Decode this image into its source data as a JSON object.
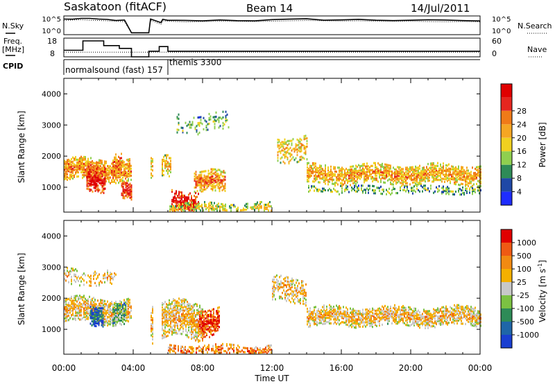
{
  "header": {
    "title": "Saskatoon (fitACF)",
    "beam": "Beam 14",
    "date": "14/Jul/2011"
  },
  "side_labels": {
    "nsky": "N.Sky",
    "nsearch": "N.Search",
    "freq_line1": "Freq.",
    "freq_line2": "[MHz]",
    "nave": "Nave",
    "cpid": "CPID"
  },
  "cpid_names": [
    "normalsound (fast) 157",
    "themis 3300"
  ],
  "x_axis": {
    "label": "Time UT",
    "ticks": [
      "00:00",
      "04:00",
      "08:00",
      "12:00",
      "16:00",
      "20:00",
      "00:00"
    ]
  },
  "colorbars": {
    "power": {
      "label": "Power [dB]",
      "ticks": [
        "4",
        "8",
        "12",
        "16",
        "20",
        "24",
        "28"
      ],
      "colors": [
        "#1e2cff",
        "#1f48a6",
        "#2e8b57",
        "#8fcf4f",
        "#f0d020",
        "#f5a623",
        "#f07a18",
        "#e5261f",
        "#e00000"
      ]
    },
    "velocity": {
      "label": "Velocity [m s",
      "label_sup": "-1",
      "label_end": "]",
      "ticks": [
        "1000",
        "500",
        "100",
        "25",
        "-25",
        "-100",
        "-500",
        "-1000"
      ],
      "colors": [
        "#1a3fd1",
        "#1f66a8",
        "#2e8b57",
        "#7cc242",
        "#c8c8c8",
        "#f5b000",
        "#f28a12",
        "#ef5a14",
        "#e00000"
      ]
    }
  },
  "chart_data": [
    {
      "type": "line",
      "name": "noise-panel",
      "title": "",
      "ylabel": "N.Sky",
      "left_ticks": [
        "10^5",
        "10^0"
      ],
      "right_label": "N.Search",
      "right_ticks": [
        "10^5",
        "10^0"
      ],
      "x_hours": [
        0.0,
        0.5,
        1.0,
        1.5,
        2.0,
        2.5,
        3.0,
        3.5,
        3.9,
        4.0,
        4.3,
        4.4,
        4.9,
        5.0,
        5.6,
        5.7,
        6.0,
        7.0,
        8.0,
        9.0,
        10.0,
        11.0,
        12.0,
        13.0,
        14.0,
        15.0,
        16.0,
        17.0,
        18.0,
        19.0,
        20.0,
        21.0,
        22.0,
        23.0,
        24.0
      ],
      "sky_level": [
        0.82,
        0.84,
        0.86,
        0.83,
        0.82,
        0.8,
        0.78,
        0.75,
        0.1,
        0.1,
        0.1,
        0.1,
        0.1,
        0.82,
        0.62,
        0.8,
        0.78,
        0.74,
        0.76,
        0.78,
        0.77,
        0.76,
        0.78,
        0.8,
        0.82,
        0.8,
        0.79,
        0.8,
        0.78,
        0.77,
        0.78,
        0.76,
        0.75,
        0.76,
        0.74
      ]
    },
    {
      "type": "line",
      "name": "frequency-panel",
      "ylabel": "Freq. [MHz]",
      "left_ticks": [
        "18",
        "8"
      ],
      "right_label": "Nave",
      "right_ticks": [
        "60",
        "0"
      ],
      "freq_steps": [
        [
          0.0,
          1.1,
          11.5
        ],
        [
          1.1,
          2.3,
          16.5
        ],
        [
          2.3,
          3.2,
          14.0
        ],
        [
          3.2,
          3.9,
          12.5
        ],
        [
          3.9,
          4.9,
          8.0
        ],
        [
          4.9,
          5.5,
          11.0
        ],
        [
          5.5,
          6.0,
          13.5
        ],
        [
          6.0,
          24.0,
          11.0
        ]
      ],
      "nave_level": 15
    },
    {
      "type": "table",
      "name": "cpid-panel",
      "segments": [
        {
          "start_hour": 0.0,
          "end_hour": 6.0,
          "label_index": 0
        },
        {
          "start_hour": 6.0,
          "end_hour": 24.0,
          "label_index": 1
        }
      ]
    },
    {
      "type": "heatmap",
      "name": "power-panel",
      "ylabel": "Slant Range [km]",
      "yticks": [
        "1000",
        "2000",
        "3000",
        "4000"
      ],
      "xlim": [
        0,
        24
      ],
      "ylim": [
        200,
        4500
      ],
      "colorbar": "power",
      "gaps_hours": [
        [
          3.9,
          4.9
        ],
        [
          5.1,
          5.6
        ]
      ],
      "bands": [
        {
          "t0": 0.0,
          "t1": 4.0,
          "r_center": 1600,
          "r_width": 350,
          "density": 0.9,
          "level": 0.55
        },
        {
          "t0": 1.3,
          "t1": 2.4,
          "r_center": 1350,
          "r_width": 400,
          "density": 0.85,
          "level": 0.75
        },
        {
          "t0": 2.8,
          "t1": 3.3,
          "r_center": 1750,
          "r_width": 300,
          "density": 0.8,
          "level": 0.6
        },
        {
          "t0": 3.3,
          "t1": 3.9,
          "r_center": 900,
          "r_width": 250,
          "density": 0.8,
          "level": 0.7
        },
        {
          "t0": 5.0,
          "t1": 6.2,
          "r_center": 1650,
          "r_width": 350,
          "density": 0.7,
          "level": 0.45
        },
        {
          "t0": 6.2,
          "t1": 7.8,
          "r_center": 600,
          "r_width": 350,
          "density": 0.85,
          "level": 0.75
        },
        {
          "t0": 7.5,
          "t1": 9.3,
          "r_center": 1200,
          "r_width": 350,
          "density": 0.75,
          "level": 0.55
        },
        {
          "t0": 6.0,
          "t1": 12.0,
          "r_center": 350,
          "r_width": 200,
          "density": 0.55,
          "level": 0.35
        },
        {
          "t0": 12.3,
          "t1": 14.0,
          "r_center": 2300,
          "r_width": 400,
          "density": 0.5,
          "level": 0.45
        },
        {
          "t0": 14.0,
          "t1": 24.0,
          "r_center": 1450,
          "r_width": 300,
          "density": 0.8,
          "level": 0.5
        },
        {
          "t0": 14.0,
          "t1": 24.0,
          "r_center": 950,
          "r_width": 120,
          "density": 0.4,
          "level": 0.25
        },
        {
          "t0": 6.5,
          "t1": 9.5,
          "r_center": 3100,
          "r_width": 300,
          "density": 0.25,
          "level": 0.25
        }
      ]
    },
    {
      "type": "heatmap",
      "name": "velocity-panel",
      "ylabel": "Slant Range [km]",
      "yticks": [
        "1000",
        "2000",
        "3000",
        "4000"
      ],
      "xlim": [
        0,
        24
      ],
      "ylim": [
        200,
        4500
      ],
      "colorbar": "velocity",
      "gaps_hours": [
        [
          3.9,
          4.9
        ],
        [
          5.1,
          5.6
        ]
      ],
      "bands": [
        {
          "t0": 0.0,
          "t1": 4.0,
          "r_center": 1650,
          "r_width": 400,
          "density": 0.85,
          "level": 0.5
        },
        {
          "t0": 1.5,
          "t1": 2.3,
          "r_center": 1500,
          "r_width": 300,
          "density": 0.85,
          "level": 0.08
        },
        {
          "t0": 2.8,
          "t1": 3.6,
          "r_center": 1500,
          "r_width": 300,
          "density": 0.8,
          "level": 0.25
        },
        {
          "t0": 5.0,
          "t1": 8.0,
          "r_center": 1300,
          "r_width": 600,
          "density": 0.8,
          "level": 0.5
        },
        {
          "t0": 7.8,
          "t1": 9.0,
          "r_center": 1300,
          "r_width": 450,
          "density": 0.85,
          "level": 0.75
        },
        {
          "t0": 6.0,
          "t1": 12.0,
          "r_center": 350,
          "r_width": 200,
          "density": 0.55,
          "level": 0.62
        },
        {
          "t0": 12.0,
          "t1": 14.0,
          "r_center": 2300,
          "r_width": 400,
          "density": 0.5,
          "level": 0.5
        },
        {
          "t0": 14.0,
          "t1": 24.0,
          "r_center": 1450,
          "r_width": 300,
          "density": 0.8,
          "level": 0.5
        },
        {
          "t0": 0.0,
          "t1": 3.0,
          "r_center": 2700,
          "r_width": 250,
          "density": 0.3,
          "level": 0.5
        }
      ]
    }
  ]
}
